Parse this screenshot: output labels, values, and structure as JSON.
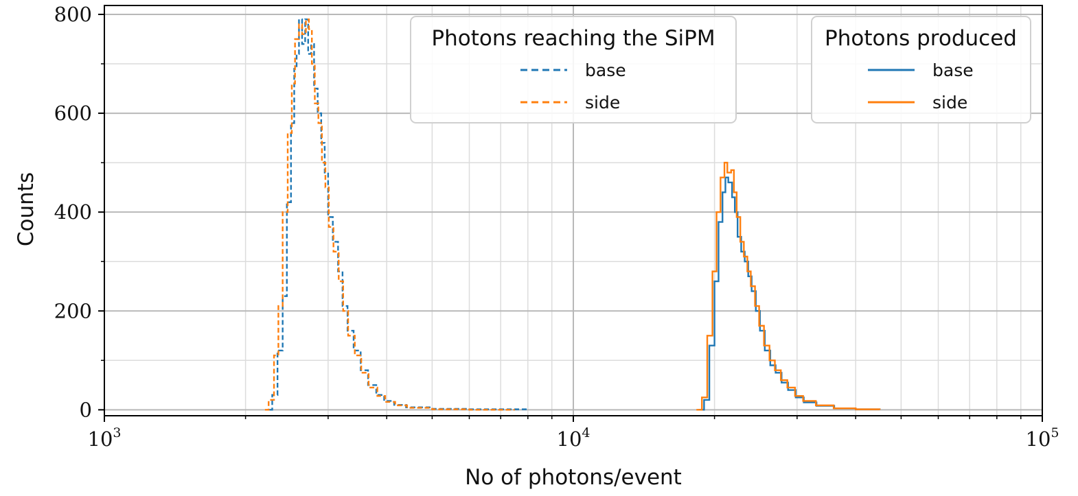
{
  "chart_data": {
    "type": "histogram-step",
    "xscale": "log",
    "xlim": [
      1000,
      100000
    ],
    "ylim": [
      -12,
      818
    ],
    "xlabel": "No of photons/event",
    "ylabel": "Counts",
    "x_ticks": [
      {
        "base": "10",
        "exp": "3",
        "value": 1000
      },
      {
        "base": "10",
        "exp": "4",
        "value": 10000
      },
      {
        "base": "10",
        "exp": "5",
        "value": 100000
      }
    ],
    "y_ticks": [
      0,
      200,
      400,
      600,
      800
    ],
    "grid": true,
    "legends": [
      {
        "title": "Photons reaching the SiPM",
        "placement": "top-center-right",
        "style": "dashed",
        "entries": [
          {
            "label": "base",
            "color": "#1f77b4"
          },
          {
            "label": "side",
            "color": "#ff7f0e"
          }
        ]
      },
      {
        "title": "Photons produced",
        "placement": "top-right",
        "style": "solid",
        "entries": [
          {
            "label": "base",
            "color": "#1f77b4"
          },
          {
            "label": "side",
            "color": "#ff7f0e"
          }
        ]
      }
    ],
    "series": [
      {
        "legend_group": "Photons reaching the SiPM",
        "label": "base",
        "style": "dashed",
        "color": "#1f77b4",
        "points": [
          [
            2250,
            0
          ],
          [
            2280,
            30
          ],
          [
            2340,
            120
          ],
          [
            2400,
            230
          ],
          [
            2450,
            420
          ],
          [
            2500,
            580
          ],
          [
            2540,
            690
          ],
          [
            2570,
            720
          ],
          [
            2600,
            790
          ],
          [
            2640,
            740
          ],
          [
            2680,
            790
          ],
          [
            2720,
            720
          ],
          [
            2760,
            740
          ],
          [
            2800,
            650
          ],
          [
            2850,
            600
          ],
          [
            2900,
            540
          ],
          [
            2950,
            480
          ],
          [
            3000,
            390
          ],
          [
            3070,
            340
          ],
          [
            3150,
            280
          ],
          [
            3220,
            210
          ],
          [
            3300,
            160
          ],
          [
            3400,
            120
          ],
          [
            3520,
            80
          ],
          [
            3650,
            50
          ],
          [
            3800,
            30
          ],
          [
            3950,
            18
          ],
          [
            4150,
            10
          ],
          [
            4400,
            5
          ],
          [
            5000,
            2
          ],
          [
            6000,
            1
          ],
          [
            8000,
            0
          ]
        ]
      },
      {
        "legend_group": "Photons reaching the SiPM",
        "label": "side",
        "style": "dashed",
        "color": "#ff7f0e",
        "points": [
          [
            2200,
            0
          ],
          [
            2240,
            20
          ],
          [
            2300,
            110
          ],
          [
            2350,
            210
          ],
          [
            2400,
            400
          ],
          [
            2460,
            560
          ],
          [
            2510,
            660
          ],
          [
            2550,
            750
          ],
          [
            2600,
            780
          ],
          [
            2640,
            760
          ],
          [
            2690,
            790
          ],
          [
            2730,
            770
          ],
          [
            2770,
            700
          ],
          [
            2810,
            620
          ],
          [
            2860,
            580
          ],
          [
            2910,
            500
          ],
          [
            2960,
            450
          ],
          [
            3010,
            370
          ],
          [
            3080,
            320
          ],
          [
            3160,
            260
          ],
          [
            3230,
            200
          ],
          [
            3310,
            150
          ],
          [
            3420,
            110
          ],
          [
            3530,
            75
          ],
          [
            3660,
            45
          ],
          [
            3820,
            28
          ],
          [
            3970,
            16
          ],
          [
            4170,
            9
          ],
          [
            4420,
            4
          ],
          [
            5000,
            1
          ],
          [
            6000,
            0
          ],
          [
            7500,
            0
          ]
        ]
      },
      {
        "legend_group": "Photons produced",
        "label": "base",
        "style": "solid",
        "color": "#1f77b4",
        "points": [
          [
            18500,
            0
          ],
          [
            19000,
            20
          ],
          [
            19500,
            130
          ],
          [
            20000,
            260
          ],
          [
            20400,
            380
          ],
          [
            20800,
            440
          ],
          [
            21100,
            470
          ],
          [
            21400,
            460
          ],
          [
            21800,
            430
          ],
          [
            22100,
            400
          ],
          [
            22400,
            350
          ],
          [
            22800,
            320
          ],
          [
            23200,
            300
          ],
          [
            23600,
            270
          ],
          [
            24000,
            240
          ],
          [
            24500,
            200
          ],
          [
            25000,
            160
          ],
          [
            25600,
            120
          ],
          [
            26300,
            90
          ],
          [
            27000,
            75
          ],
          [
            27800,
            55
          ],
          [
            28700,
            40
          ],
          [
            29800,
            25
          ],
          [
            31000,
            15
          ],
          [
            33000,
            8
          ],
          [
            36000,
            3
          ],
          [
            40000,
            1
          ],
          [
            45000,
            0
          ]
        ]
      },
      {
        "legend_group": "Photons produced",
        "label": "side",
        "style": "solid",
        "color": "#ff7f0e",
        "points": [
          [
            18300,
            0
          ],
          [
            18800,
            25
          ],
          [
            19300,
            150
          ],
          [
            19800,
            280
          ],
          [
            20200,
            400
          ],
          [
            20600,
            470
          ],
          [
            21000,
            500
          ],
          [
            21300,
            480
          ],
          [
            21700,
            485
          ],
          [
            22000,
            440
          ],
          [
            22300,
            390
          ],
          [
            22700,
            340
          ],
          [
            23100,
            310
          ],
          [
            23500,
            280
          ],
          [
            23900,
            250
          ],
          [
            24400,
            210
          ],
          [
            24900,
            170
          ],
          [
            25500,
            130
          ],
          [
            26200,
            100
          ],
          [
            26900,
            80
          ],
          [
            27700,
            60
          ],
          [
            28600,
            45
          ],
          [
            29700,
            28
          ],
          [
            30900,
            18
          ],
          [
            32900,
            9
          ],
          [
            35900,
            3
          ],
          [
            40000,
            1
          ],
          [
            45000,
            0
          ]
        ]
      }
    ]
  }
}
